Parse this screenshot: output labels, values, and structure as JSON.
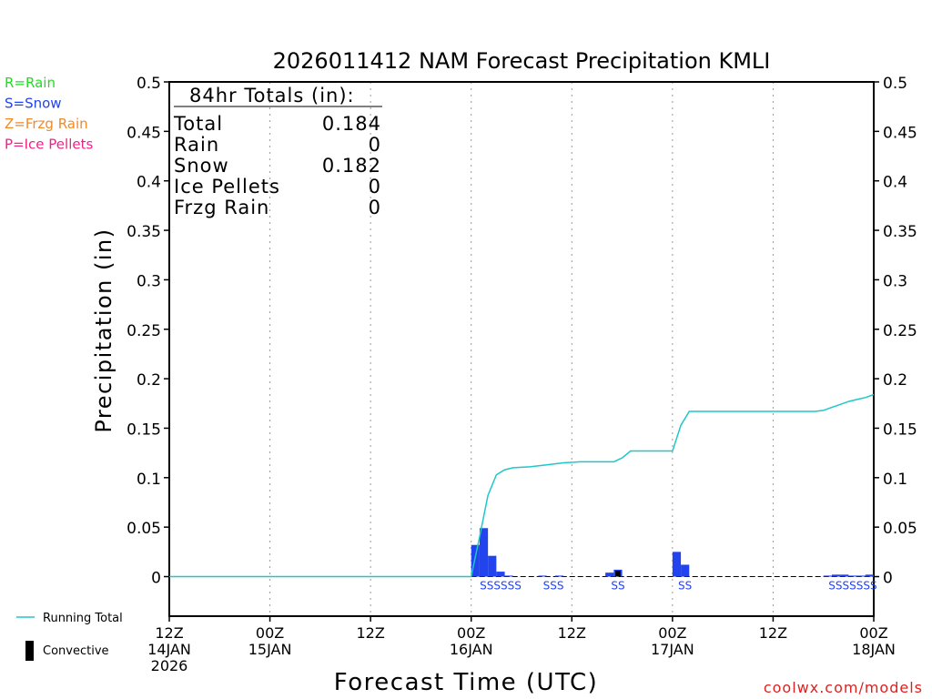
{
  "chart_data": {
    "type": "bar",
    "title": "2026011412 NAM Forecast Precipitation KMLI",
    "xlabel": "Forecast Time (UTC)",
    "ylabel": "Precipitation (in)",
    "watermark": "coolwx.com/models",
    "xlim": [
      0,
      84
    ],
    "ylim": [
      -0.04,
      0.5
    ],
    "y_ticks": [
      0,
      0.05,
      0.1,
      0.15,
      0.2,
      0.25,
      0.3,
      0.35,
      0.4,
      0.45,
      0.5
    ],
    "y_tick_labels": [
      "0",
      "0.05",
      "0.1",
      "0.15",
      "0.2",
      "0.25",
      "0.3",
      "0.35",
      "0.4",
      "0.45",
      "0.5"
    ],
    "x_ticks": [
      {
        "hour": 0,
        "line1": "12Z",
        "line2": "14JAN",
        "line3": "2026"
      },
      {
        "hour": 12,
        "line1": "00Z",
        "line2": "15JAN",
        "line3": ""
      },
      {
        "hour": 24,
        "line1": "12Z",
        "line2": "",
        "line3": ""
      },
      {
        "hour": 36,
        "line1": "00Z",
        "line2": "16JAN",
        "line3": ""
      },
      {
        "hour": 48,
        "line1": "12Z",
        "line2": "",
        "line3": ""
      },
      {
        "hour": 60,
        "line1": "00Z",
        "line2": "17JAN",
        "line3": ""
      },
      {
        "hour": 72,
        "line1": "12Z",
        "line2": "",
        "line3": ""
      },
      {
        "hour": 84,
        "line1": "00Z",
        "line2": "18JAN",
        "line3": ""
      }
    ],
    "gridlines": [
      12,
      24,
      36,
      48,
      60,
      72
    ],
    "legend_top": [
      {
        "text": "R=Rain",
        "color": "#22dd22"
      },
      {
        "text": "S=Snow",
        "color": "#2244ee"
      },
      {
        "text": "Z=Frzg Rain",
        "color": "#f08a2a"
      },
      {
        "text": "P=Ice Pellets",
        "color": "#ee2288"
      }
    ],
    "legend_bottom": [
      {
        "text": "Running Total",
        "kind": "line",
        "color": "#1ec8c8"
      },
      {
        "text": "Convective",
        "kind": "box",
        "color": "#000000"
      }
    ],
    "totals": {
      "heading": "84hr Totals (in):",
      "rows": [
        {
          "label": "Total",
          "value": "0.184"
        },
        {
          "label": "Rain",
          "value": "0"
        },
        {
          "label": "Snow",
          "value": "0.182"
        },
        {
          "label": "Ice Pellets",
          "value": "0"
        },
        {
          "label": "Frzg Rain",
          "value": "0"
        }
      ]
    },
    "series": [
      {
        "name": "Snow",
        "color": "#2244ee",
        "bars": [
          {
            "hour": 37,
            "value": 0.032
          },
          {
            "hour": 38,
            "value": 0.049
          },
          {
            "hour": 39,
            "value": 0.021
          },
          {
            "hour": 40,
            "value": 0.005
          },
          {
            "hour": 41,
            "value": 0.001
          },
          {
            "hour": 45,
            "value": 0.001
          },
          {
            "hour": 47,
            "value": 0.001
          },
          {
            "hour": 53,
            "value": 0.004
          },
          {
            "hour": 54,
            "value": 0.007
          },
          {
            "hour": 61,
            "value": 0.025
          },
          {
            "hour": 62,
            "value": 0.012
          },
          {
            "hour": 79,
            "value": 0.001
          },
          {
            "hour": 80,
            "value": 0.002
          },
          {
            "hour": 81,
            "value": 0.002
          },
          {
            "hour": 82,
            "value": 0.001
          },
          {
            "hour": 83,
            "value": 0.001
          },
          {
            "hour": 84,
            "value": 0.002
          }
        ]
      },
      {
        "name": "Convective",
        "color": "#000000",
        "bars": [
          {
            "hour": 54,
            "value": 0.006
          }
        ]
      },
      {
        "name": "Running Total",
        "color": "#1ec8c8",
        "points": [
          [
            0,
            0
          ],
          [
            36,
            0
          ],
          [
            37,
            0.04
          ],
          [
            38,
            0.082
          ],
          [
            39,
            0.103
          ],
          [
            40,
            0.108
          ],
          [
            41,
            0.11
          ],
          [
            43,
            0.111
          ],
          [
            45,
            0.113
          ],
          [
            47,
            0.115
          ],
          [
            49,
            0.116
          ],
          [
            53,
            0.116
          ],
          [
            54,
            0.12
          ],
          [
            55,
            0.127
          ],
          [
            60,
            0.127
          ],
          [
            61,
            0.153
          ],
          [
            62,
            0.167
          ],
          [
            70,
            0.167
          ],
          [
            77,
            0.167
          ],
          [
            78,
            0.168
          ],
          [
            79,
            0.171
          ],
          [
            80,
            0.174
          ],
          [
            81,
            0.177
          ],
          [
            82,
            0.179
          ],
          [
            83,
            0.181
          ],
          [
            84,
            0.184
          ]
        ]
      }
    ],
    "ptype_labels": [
      {
        "hour": 39.5,
        "text": "SSSSSS"
      },
      {
        "hour": 45.8,
        "text": "SSS"
      },
      {
        "hour": 53.5,
        "text": "SS"
      },
      {
        "hour": 61.5,
        "text": "SS"
      },
      {
        "hour": 81.5,
        "text": "SSSSSSS"
      }
    ],
    "ptype_color": "#2244ee"
  }
}
